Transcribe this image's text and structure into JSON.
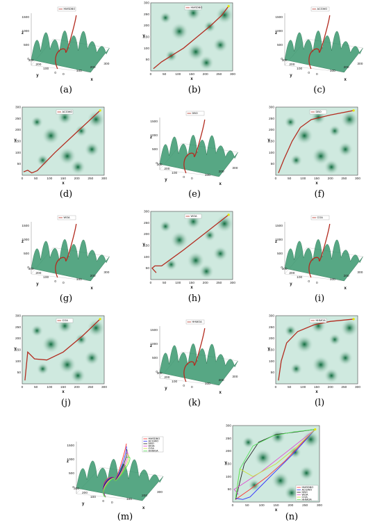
{
  "colors": {
    "path": "#b32b1f",
    "peak": "#1f8a5b",
    "background": "#cfe9df",
    "series": [
      "#ff3030",
      "#3030ff",
      "#202020",
      "#e04bd0",
      "#c8e03a",
      "#55e05a"
    ]
  },
  "panels": [
    {
      "label": "(a)",
      "kind": "3d",
      "legend": [
        "HMSDBO"
      ]
    },
    {
      "label": "(b)",
      "kind": "2d",
      "legend": [
        "HMSDBO"
      ]
    },
    {
      "label": "(c)",
      "kind": "3d",
      "legend": [
        "ACGWO"
      ]
    },
    {
      "label": "(d)",
      "kind": "2d",
      "legend": [
        "ACGWO"
      ]
    },
    {
      "label": "(e)",
      "kind": "3d",
      "legend": [
        "DBO"
      ]
    },
    {
      "label": "(f)",
      "kind": "2d",
      "legend": [
        "DBO"
      ]
    },
    {
      "label": "(g)",
      "kind": "3d",
      "legend": [
        "WOA"
      ]
    },
    {
      "label": "(h)",
      "kind": "2d",
      "legend": [
        "WOA"
      ]
    },
    {
      "label": "(i)",
      "kind": "3d",
      "legend": [
        "COA"
      ]
    },
    {
      "label": "(j)",
      "kind": "2d",
      "legend": [
        "COA"
      ]
    },
    {
      "label": "(k)",
      "kind": "3d",
      "legend": [
        "HHMOA"
      ]
    },
    {
      "label": "(l)",
      "kind": "2d",
      "legend": [
        "HHMOA"
      ]
    },
    {
      "label": "(m)",
      "kind": "3d",
      "legend": [
        "HMSDBO",
        "ACGWO",
        "DBO",
        "WOA",
        "COA",
        "HHMOA"
      ]
    },
    {
      "label": "(n)",
      "kind": "2d",
      "legend": [
        "HMSDBO",
        "ACGWO",
        "DBO",
        "WOA",
        "COA",
        "HHMOA"
      ]
    }
  ],
  "axes2d": {
    "xlabel": "x",
    "ylabel": "y",
    "xticks": [
      "0",
      "50",
      "100",
      "150",
      "200",
      "250",
      "300"
    ],
    "yticks": [
      "0",
      "50",
      "100",
      "150",
      "200",
      "250",
      "300"
    ]
  },
  "axes3d": {
    "zlabel": "z",
    "xlabel": "x",
    "ylabel": "y",
    "zticks": [
      "0",
      "500",
      "1000",
      "1500"
    ],
    "xticks": [
      "0",
      "100",
      "200",
      "300"
    ],
    "yticks": [
      "0",
      "100",
      "200",
      "300"
    ]
  },
  "chart_data": [
    {
      "type": "line",
      "panel": "(b)",
      "series": [
        {
          "name": "HMSDBO",
          "x": [
            10,
            40,
            80,
            120,
            170,
            220,
            260,
            285
          ],
          "y": [
            10,
            40,
            70,
            100,
            150,
            200,
            245,
            285
          ]
        }
      ],
      "xlim": [
        0,
        300
      ],
      "ylim": [
        0,
        300
      ]
    },
    {
      "type": "line",
      "panel": "(d)",
      "series": [
        {
          "name": "ACGWO",
          "x": [
            5,
            20,
            35,
            55,
            120,
            200,
            285
          ],
          "y": [
            15,
            22,
            10,
            20,
            100,
            190,
            285
          ]
        }
      ],
      "xlim": [
        0,
        300
      ],
      "ylim": [
        0,
        300
      ]
    },
    {
      "type": "line",
      "panel": "(f)",
      "series": [
        {
          "name": "DBO",
          "x": [
            10,
            30,
            60,
            90,
            130,
            200,
            285
          ],
          "y": [
            10,
            70,
            150,
            210,
            245,
            265,
            285
          ]
        }
      ],
      "xlim": [
        0,
        300
      ],
      "ylim": [
        0,
        300
      ]
    },
    {
      "type": "line",
      "panel": "(h)",
      "series": [
        {
          "name": "WOA",
          "x": [
            20,
            5,
            15,
            40,
            120,
            200,
            285
          ],
          "y": [
            30,
            50,
            60,
            60,
            130,
            205,
            285
          ]
        }
      ],
      "xlim": [
        0,
        300
      ],
      "ylim": [
        0,
        300
      ]
    },
    {
      "type": "line",
      "panel": "(j)",
      "series": [
        {
          "name": "COA",
          "x": [
            10,
            20,
            45,
            90,
            150,
            220,
            285
          ],
          "y": [
            15,
            140,
            110,
            105,
            140,
            210,
            285
          ]
        }
      ],
      "xlim": [
        0,
        300
      ],
      "ylim": [
        0,
        300
      ]
    },
    {
      "type": "line",
      "panel": "(l)",
      "series": [
        {
          "name": "HHMOA",
          "x": [
            10,
            20,
            40,
            80,
            140,
            200,
            285
          ],
          "y": [
            15,
            100,
            180,
            230,
            260,
            275,
            285
          ]
        }
      ],
      "xlim": [
        0,
        300
      ],
      "ylim": [
        0,
        300
      ]
    },
    {
      "type": "line",
      "panel": "(n)",
      "series": [
        {
          "name": "HMSDBO",
          "x": [
            10,
            60,
            120,
            180,
            230,
            285
          ],
          "y": [
            10,
            50,
            100,
            160,
            220,
            285
          ]
        },
        {
          "name": "ACGWO",
          "x": [
            10,
            35,
            60,
            130,
            210,
            285
          ],
          "y": [
            15,
            10,
            20,
            100,
            190,
            285
          ]
        },
        {
          "name": "DBO",
          "x": [
            10,
            40,
            90,
            150,
            220,
            285
          ],
          "y": [
            10,
            150,
            235,
            265,
            275,
            285
          ]
        },
        {
          "name": "WOA",
          "x": [
            20,
            5,
            20,
            100,
            190,
            285
          ],
          "y": [
            30,
            50,
            60,
            120,
            200,
            285
          ]
        },
        {
          "name": "COA",
          "x": [
            10,
            25,
            70,
            150,
            220,
            285
          ],
          "y": [
            15,
            130,
            100,
            150,
            215,
            285
          ]
        },
        {
          "name": "HHMOA",
          "x": [
            10,
            25,
            70,
            140,
            210,
            285
          ],
          "y": [
            15,
            130,
            220,
            260,
            275,
            285
          ]
        }
      ],
      "xlim": [
        0,
        300
      ],
      "ylim": [
        0,
        300
      ]
    }
  ]
}
